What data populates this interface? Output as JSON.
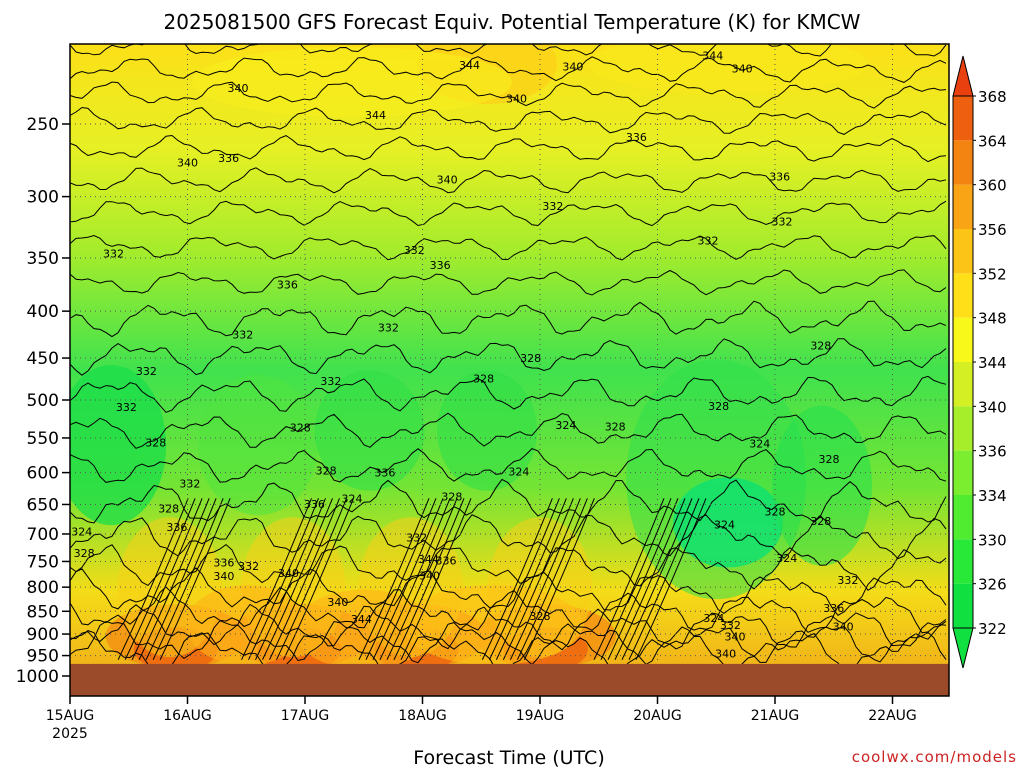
{
  "chart_data": {
    "type": "heatmap",
    "title": "2025081500 GFS Forecast Equiv. Potential Temperature (K) for KMCW",
    "xlabel": "Forecast Time (UTC)",
    "ylabel": "",
    "credit": "coolwx.com/models",
    "x_ticks": [
      "15AUG",
      "16AUG",
      "17AUG",
      "18AUG",
      "19AUG",
      "20AUG",
      "21AUG",
      "22AUG"
    ],
    "x_year": "2025",
    "x_range": [
      "2025-08-15T00",
      "2025-08-22T12"
    ],
    "y_ticks": [
      250,
      300,
      350,
      400,
      450,
      500,
      550,
      600,
      650,
      700,
      750,
      800,
      850,
      900,
      950,
      1000
    ],
    "y_range": [
      200,
      1000
    ],
    "y_scale": "log-pressure (inverted)",
    "grid": true,
    "colorbar": {
      "labels": [
        322,
        326,
        330,
        334,
        336,
        340,
        344,
        348,
        352,
        356,
        360,
        364,
        368
      ],
      "colors": [
        "#10e040",
        "#28e838",
        "#50ec30",
        "#7cee30",
        "#a6ee2a",
        "#d4f024",
        "#f8f81a",
        "#ffe018",
        "#fcc416",
        "#f8a414",
        "#f48412",
        "#ee6010",
        "#e8400e"
      ],
      "unit": "K"
    },
    "ground_color": "#9b4a2a",
    "contour_labels": [
      {
        "t": 0.1,
        "p": 697,
        "v": "324"
      },
      {
        "t": 0.12,
        "p": 736,
        "v": "328"
      },
      {
        "t": 0.37,
        "p": 347,
        "v": "332"
      },
      {
        "t": 0.65,
        "p": 466,
        "v": "332"
      },
      {
        "t": 0.84,
        "p": 658,
        "v": "328"
      },
      {
        "t": 0.91,
        "p": 690,
        "v": "336"
      },
      {
        "t": 0.48,
        "p": 510,
        "v": "332"
      },
      {
        "t": 1.43,
        "p": 229,
        "v": "340"
      },
      {
        "t": 1.35,
        "p": 273,
        "v": "336"
      },
      {
        "t": 0.73,
        "p": 558,
        "v": "328"
      },
      {
        "t": 1.02,
        "p": 618,
        "v": "332"
      },
      {
        "t": 1.31,
        "p": 754,
        "v": "336"
      },
      {
        "t": 1.31,
        "p": 780,
        "v": "340"
      },
      {
        "t": 1.52,
        "p": 761,
        "v": "332"
      },
      {
        "t": 1.47,
        "p": 425,
        "v": "332"
      },
      {
        "t": 1.85,
        "p": 375,
        "v": "336"
      },
      {
        "t": 2.18,
        "p": 598,
        "v": "328"
      },
      {
        "t": 2.4,
        "p": 642,
        "v": "324"
      },
      {
        "t": 2.08,
        "p": 651,
        "v": "336"
      },
      {
        "t": 1.96,
        "p": 537,
        "v": "328"
      },
      {
        "t": 2.22,
        "p": 478,
        "v": "332"
      },
      {
        "t": 2.68,
        "p": 601,
        "v": "336"
      },
      {
        "t": 1.0,
        "p": 276,
        "v": "340"
      },
      {
        "t": 2.6,
        "p": 245,
        "v": "344"
      },
      {
        "t": 1.86,
        "p": 774,
        "v": "340"
      },
      {
        "t": 2.48,
        "p": 869,
        "v": "344"
      },
      {
        "t": 2.28,
        "p": 832,
        "v": "340"
      },
      {
        "t": 2.71,
        "p": 418,
        "v": "332"
      },
      {
        "t": 3.15,
        "p": 357,
        "v": "336"
      },
      {
        "t": 2.93,
        "p": 344,
        "v": "332"
      },
      {
        "t": 2.95,
        "p": 708,
        "v": "332"
      },
      {
        "t": 3.05,
        "p": 747,
        "v": "344"
      },
      {
        "t": 3.06,
        "p": 779,
        "v": "340"
      },
      {
        "t": 3.2,
        "p": 750,
        "v": "336"
      },
      {
        "t": 3.25,
        "p": 639,
        "v": "328"
      },
      {
        "t": 3.52,
        "p": 475,
        "v": "328"
      },
      {
        "t": 3.92,
        "p": 451,
        "v": "328"
      },
      {
        "t": 3.82,
        "p": 600,
        "v": "324"
      },
      {
        "t": 3.8,
        "p": 235,
        "v": "340"
      },
      {
        "t": 3.4,
        "p": 216,
        "v": "344"
      },
      {
        "t": 4.28,
        "p": 217,
        "v": "340"
      },
      {
        "t": 3.21,
        "p": 288,
        "v": "340"
      },
      {
        "t": 4.82,
        "p": 259,
        "v": "336"
      },
      {
        "t": 5.47,
        "p": 211,
        "v": "344"
      },
      {
        "t": 5.72,
        "p": 218,
        "v": "340"
      },
      {
        "t": 6.04,
        "p": 286,
        "v": "336"
      },
      {
        "t": 6.06,
        "p": 320,
        "v": "332"
      },
      {
        "t": 5.43,
        "p": 336,
        "v": "332"
      },
      {
        "t": 6.39,
        "p": 437,
        "v": "328"
      },
      {
        "t": 5.52,
        "p": 509,
        "v": "328"
      },
      {
        "t": 5.87,
        "p": 559,
        "v": "324"
      },
      {
        "t": 6.46,
        "p": 581,
        "v": "328"
      },
      {
        "t": 6.0,
        "p": 663,
        "v": "328"
      },
      {
        "t": 5.57,
        "p": 685,
        "v": "324"
      },
      {
        "t": 6.39,
        "p": 679,
        "v": "328"
      },
      {
        "t": 6.1,
        "p": 745,
        "v": "324"
      },
      {
        "t": 6.62,
        "p": 788,
        "v": "332"
      },
      {
        "t": 6.5,
        "p": 845,
        "v": "336"
      },
      {
        "t": 6.58,
        "p": 885,
        "v": "340"
      },
      {
        "t": 5.48,
        "p": 867,
        "v": "324"
      },
      {
        "t": 5.62,
        "p": 882,
        "v": "332"
      },
      {
        "t": 5.66,
        "p": 908,
        "v": "340"
      },
      {
        "t": 4.0,
        "p": 862,
        "v": "328"
      },
      {
        "t": 4.64,
        "p": 536,
        "v": "328"
      },
      {
        "t": 4.22,
        "p": 534,
        "v": "324"
      },
      {
        "t": 5.58,
        "p": 947,
        "v": "340"
      },
      {
        "t": 4.11,
        "p": 308,
        "v": "332"
      }
    ]
  }
}
